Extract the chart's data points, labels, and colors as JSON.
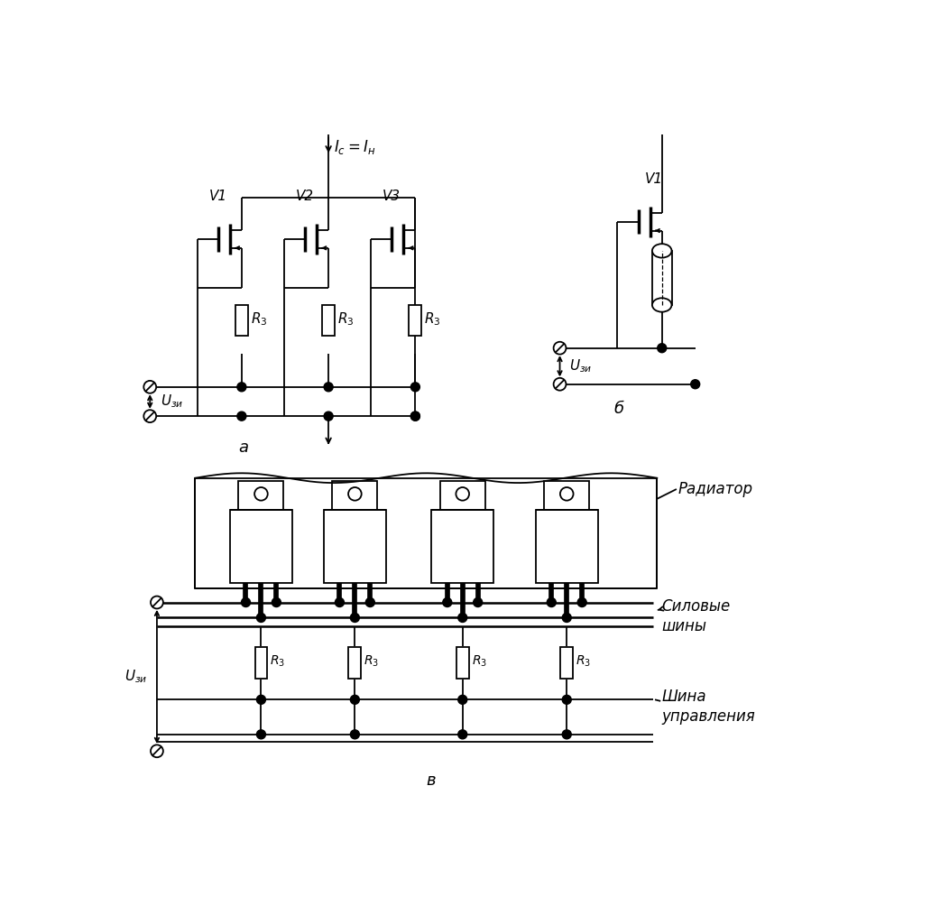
{
  "bg_color": "#ffffff",
  "line_color": "#000000",
  "fig_width": 10.32,
  "fig_height": 9.94,
  "labels": {
    "Ic_Ih": "$I_c=I_н$",
    "V1": "V1",
    "V2": "V2",
    "V3": "V3",
    "R3": "$R_3$",
    "Uzi": "$U_{зи}$",
    "a": "а",
    "b": "б",
    "v": "в",
    "radiator": "Радиатор",
    "silovye_shiny": "Силовые\nшины",
    "shina_upravleniya": "Шина\nуправления"
  }
}
